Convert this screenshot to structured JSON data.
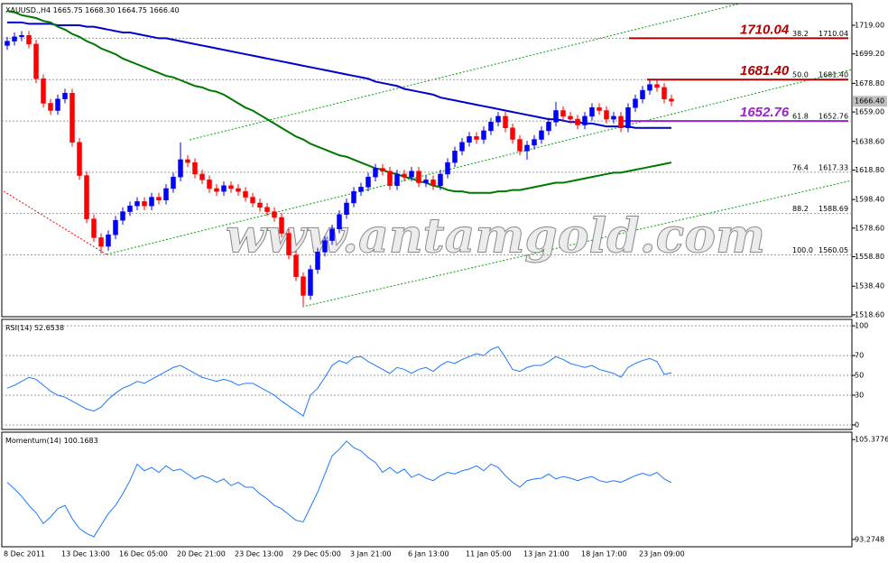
{
  "chart_data": [
    {
      "type": "candlestick",
      "title": "XAUUSD.,H4",
      "ohlc": [
        1665.75,
        {
          "value": 1668.3,
          "label": "1668.30"
        },
        1664.75,
        {
          "value": 1666.4,
          "label": "1666.40"
        }
      ],
      "current_price": {
        "value": 1666.4,
        "label": "1666.40"
      },
      "watermark": "www.antamgold.com",
      "categories": [
        "8 Dec 2011",
        null,
        null,
        null,
        null,
        null,
        null,
        null,
        "13 Dec 13:00",
        null,
        null,
        null,
        null,
        null,
        null,
        null,
        "16 Dec 05:00",
        null,
        null,
        null,
        null,
        null,
        null,
        null,
        "20 Dec 21:00",
        null,
        null,
        null,
        null,
        null,
        null,
        null,
        "23 Dec 13:00",
        null,
        null,
        null,
        null,
        null,
        null,
        null,
        "29 Dec 05:00",
        null,
        null,
        null,
        null,
        null,
        null,
        null,
        "3 Jan 21:00",
        null,
        null,
        null,
        null,
        null,
        null,
        null,
        "6 Jan 13:00",
        null,
        null,
        null,
        null,
        null,
        null,
        null,
        "11 Jan 05:00",
        null,
        null,
        null,
        null,
        null,
        null,
        null,
        "13 Jan 21:00",
        null,
        null,
        null,
        null,
        null,
        null,
        null,
        "18 Jan 17:00",
        null,
        null,
        null,
        null,
        null,
        null,
        null,
        "23 Jan 09:00",
        null,
        null,
        null,
        null
      ],
      "open": [
        1705,
        1708,
        1711,
        1712,
        1706,
        1682,
        1665,
        1660,
        1668,
        1672,
        1638,
        1615,
        1585,
        1572,
        1566,
        1574,
        1584,
        1590,
        1594,
        1597,
        1594,
        1600,
        1598,
        1606,
        1614,
        1626,
        1624,
        1616,
        1612,
        1606,
        1604,
        1608,
        1606,
        1604,
        1600,
        1596,
        1593,
        1590,
        1586,
        1575,
        1560,
        1545,
        1532,
        1550,
        1562,
        1570,
        1578,
        1588,
        1596,
        1604,
        1607,
        1614,
        1620,
        1618,
        1608,
        1616,
        1614,
        1618,
        1610,
        1612,
        1608,
        1616,
        1624,
        1632,
        1638,
        1642,
        1640,
        1646,
        1652,
        1656,
        1648,
        1640,
        1632,
        1636,
        1640,
        1646,
        1652,
        1660,
        1656,
        1654,
        1650,
        1656,
        1662,
        1660,
        1654,
        1656,
        1648,
        1662,
        1668,
        1674,
        1678,
        1676,
        1668
      ],
      "high": [
        1711,
        1714,
        1715,
        1715,
        1709,
        1685,
        1668,
        1671,
        1675,
        1675,
        1641,
        1618,
        1588,
        1575,
        1577,
        1587,
        1593,
        1597,
        1600,
        1600,
        1603,
        1603,
        1609,
        1617,
        1638,
        1629,
        1627,
        1619,
        1615,
        1609,
        1611,
        1611,
        1609,
        1607,
        1603,
        1599,
        1596,
        1593,
        1589,
        1578,
        1563,
        1548,
        1553,
        1565,
        1573,
        1581,
        1591,
        1599,
        1607,
        1610,
        1617,
        1623,
        1623,
        1621,
        1619,
        1619,
        1621,
        1621,
        1615,
        1615,
        1619,
        1627,
        1635,
        1641,
        1645,
        1645,
        1649,
        1655,
        1659,
        1659,
        1651,
        1643,
        1639,
        1643,
        1649,
        1655,
        1666,
        1663,
        1659,
        1657,
        1659,
        1665,
        1665,
        1663,
        1659,
        1659,
        1665,
        1671,
        1677,
        1681,
        1681,
        1679,
        1671
      ],
      "low": [
        1702,
        1705,
        1708,
        1703,
        1679,
        1662,
        1657,
        1657,
        1665,
        1635,
        1612,
        1582,
        1569,
        1561,
        1563,
        1571,
        1581,
        1587,
        1591,
        1591,
        1591,
        1595,
        1595,
        1603,
        1611,
        1621,
        1613,
        1609,
        1603,
        1601,
        1601,
        1603,
        1601,
        1597,
        1593,
        1590,
        1587,
        1583,
        1572,
        1557,
        1542,
        1525,
        1529,
        1547,
        1559,
        1567,
        1575,
        1585,
        1593,
        1601,
        1604,
        1611,
        1615,
        1605,
        1605,
        1611,
        1611,
        1607,
        1607,
        1605,
        1605,
        1613,
        1621,
        1629,
        1635,
        1637,
        1637,
        1643,
        1649,
        1645,
        1637,
        1629,
        1626,
        1633,
        1637,
        1643,
        1649,
        1653,
        1651,
        1647,
        1647,
        1653,
        1657,
        1651,
        1651,
        1645,
        1645,
        1659,
        1665,
        1671,
        1673,
        1665,
        1663
      ],
      "close": [
        1708,
        1711,
        1712,
        1706,
        1682,
        1665,
        1660,
        1668,
        1672,
        1638,
        1615,
        1585,
        1572,
        1566,
        1574,
        1584,
        1590,
        1594,
        1597,
        1594,
        1600,
        1598,
        1606,
        1614,
        1626,
        1624,
        1616,
        1612,
        1606,
        1604,
        1608,
        1606,
        1604,
        1600,
        1596,
        1593,
        1590,
        1586,
        1575,
        1560,
        1545,
        1532,
        1550,
        1562,
        1570,
        1578,
        1588,
        1596,
        1604,
        1607,
        1614,
        1620,
        1618,
        1608,
        1616,
        1614,
        1618,
        1610,
        1612,
        1608,
        1616,
        1624,
        1632,
        1638,
        1642,
        1640,
        1646,
        1652,
        1656,
        1648,
        1640,
        1632,
        1636,
        1640,
        1646,
        1652,
        1660,
        1656,
        1654,
        1650,
        1656,
        1662,
        1660,
        1654,
        1656,
        1648,
        1662,
        1668,
        1674,
        1678,
        1676,
        1668,
        1666.4
      ],
      "up_color": "#0000ff",
      "down_color": "#ff0000",
      "series": [
        {
          "color": "#0000cc",
          "values": [
            1721,
            1721,
            1721,
            1720,
            1720,
            1720,
            1720,
            1719,
            1719,
            1719,
            1719,
            1718,
            1718,
            1717,
            1716,
            1715,
            1714,
            1714,
            1713,
            1712,
            1711,
            1710,
            1710,
            1709,
            1708,
            1707,
            1706,
            1705,
            1704,
            1703,
            1702,
            1701,
            1700,
            1699,
            1698,
            1697,
            1696,
            1695,
            1694,
            1693,
            1692,
            1691,
            1690,
            1689,
            1688,
            1687,
            1686,
            1685,
            1684,
            1683,
            1682,
            1680,
            1679,
            1678,
            1677,
            1675,
            1674,
            1673,
            1672,
            1671,
            1669,
            1668,
            1667,
            1666,
            1665,
            1664,
            1663,
            1662,
            1661,
            1660,
            1659,
            1658,
            1657,
            1656,
            1655,
            1654,
            1654,
            1653,
            1652,
            1652,
            1651,
            1651,
            1650,
            1649,
            1649,
            1649,
            1649,
            1648,
            1648,
            1648,
            1648,
            1648,
            1648
          ]
        },
        {
          "color": "#007700",
          "values": [
            1729,
            1728,
            1726,
            1725,
            1724,
            1722,
            1721,
            1718,
            1716,
            1713,
            1711,
            1708,
            1706,
            1703,
            1701,
            1699,
            1696,
            1694,
            1692,
            1690,
            1688,
            1686,
            1684,
            1683,
            1681,
            1679,
            1677,
            1676,
            1674,
            1673,
            1671,
            1668,
            1665,
            1662,
            1660,
            1657,
            1654,
            1651,
            1648,
            1645,
            1642,
            1640,
            1637,
            1635,
            1633,
            1631,
            1629,
            1628,
            1626,
            1624,
            1622,
            1620,
            1619,
            1617,
            1616,
            1614,
            1613,
            1611,
            1610,
            1608,
            1607,
            1605,
            1604,
            1604,
            1603,
            1603,
            1603,
            1603,
            1604,
            1604,
            1605,
            1605,
            1606,
            1607,
            1608,
            1609,
            1610,
            1610,
            1611,
            1612,
            1613,
            1614,
            1615,
            1616,
            1617,
            1617,
            1618,
            1619,
            1620,
            1621,
            1622,
            1623,
            1624
          ]
        }
      ],
      "fib_levels": [
        {
          "level": 38.2,
          "price": 1710.04
        },
        {
          "level": {
            "value": 50,
            "label": "50.0"
          },
          "price": {
            "value": 1681.4,
            "label": "1681.40"
          }
        },
        {
          "level": 61.8,
          "price": 1652.76
        },
        {
          "level": 76.4,
          "price": 1617.33
        },
        {
          "level": 88.2,
          "price": 1588.69
        },
        {
          "level": {
            "value": 100,
            "label": "100.0"
          },
          "price": 1560.05
        }
      ],
      "annotations": [
        {
          "price": 1710.04,
          "color": "#b00000"
        },
        {
          "price": {
            "value": 1681.4,
            "label": "1681.40"
          },
          "color": "#b00000"
        },
        {
          "price": 1652.76,
          "color": "#9a20d0"
        }
      ],
      "ylim": [
        1517.3,
        1734.0
      ],
      "yticks": [
        {
          "value": 1719,
          "label": "1719.00"
        },
        {
          "value": 1699.2,
          "label": "1699.20"
        },
        {
          "value": 1678.8,
          "label": "1678.80"
        },
        {
          "value": 1659,
          "label": "1659.00"
        },
        {
          "value": 1638.6,
          "label": "1638.60"
        },
        {
          "value": 1618.8,
          "label": "1618.80"
        },
        {
          "value": 1598.4,
          "label": "1598.40"
        },
        {
          "value": 1578.6,
          "label": "1578.60"
        },
        {
          "value": 1558.8,
          "label": "1558.80"
        },
        {
          "value": 1538.4,
          "label": "1538.40"
        },
        {
          "value": 1518.6,
          "label": "1518.60"
        }
      ]
    },
    {
      "type": "line",
      "title": "RSI(14)",
      "color": "#1e78ff",
      "grid": true,
      "values": [
        37,
        40,
        44,
        48,
        46,
        40,
        34,
        30,
        28,
        24,
        20,
        16,
        14,
        18,
        26,
        32,
        37,
        40,
        44,
        42,
        46,
        50,
        54,
        58,
        60,
        56,
        52,
        48,
        46,
        44,
        46,
        44,
        40,
        42,
        42,
        38,
        34,
        30,
        24,
        19,
        14,
        9,
        30,
        37,
        48,
        60,
        65,
        62,
        68,
        69,
        64,
        60,
        56,
        52,
        58,
        56,
        52,
        56,
        58,
        54,
        60,
        64,
        62,
        66,
        69,
        72,
        70,
        76,
        79,
        68,
        56,
        54,
        58,
        60,
        60,
        64,
        69,
        66,
        62,
        60,
        58,
        60,
        56,
        54,
        52,
        48,
        58,
        62,
        65,
        67,
        64,
        51,
        52.6538
      ],
      "ylim": [
        -4.6,
        106.5
      ],
      "yticks": [
        0,
        30,
        50,
        70,
        100
      ]
    },
    {
      "type": "line",
      "title": "Momentum(14)",
      "color": "#1e78ff",
      "grid": false,
      "values": [
        100.2,
        99.4,
        98.5,
        97.4,
        96.5,
        95.2,
        96.0,
        97.0,
        97.4,
        95.8,
        94.6,
        94.0,
        93.6,
        95.0,
        96.4,
        97.4,
        98.8,
        100.4,
        102.4,
        101.6,
        102.0,
        101.4,
        102.2,
        101.6,
        101.8,
        101.2,
        100.6,
        101.0,
        100.7,
        100.2,
        100.6,
        99.8,
        100.2,
        99.6,
        99.6,
        98.8,
        98.2,
        97.4,
        97.0,
        96.3,
        95.6,
        95.4,
        97.2,
        99.0,
        101.2,
        103.4,
        104.2,
        105.2,
        104.4,
        104.0,
        103.2,
        102.6,
        101.4,
        102.0,
        101.3,
        101.8,
        100.8,
        101.2,
        100.7,
        100.4,
        101.0,
        101.4,
        101.2,
        101.6,
        101.8,
        102.2,
        101.6,
        102.4,
        102.0,
        101.0,
        100.2,
        99.6,
        100.4,
        100.6,
        100.7,
        101.2,
        100.6,
        100.9,
        100.7,
        100.4,
        100.7,
        100.9,
        100.4,
        100.2,
        100.4,
        100.2,
        100.6,
        101.0,
        101.3,
        101.0,
        101.4,
        100.6,
        100.1683
      ],
      "ylim": [
        92.39,
        106.27
      ],
      "yticks": [
        93.2748,
        105.3776
      ]
    }
  ]
}
